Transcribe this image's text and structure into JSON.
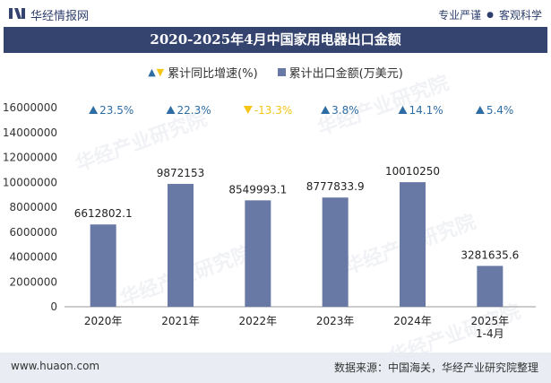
{
  "header": {
    "brand": "华经情报网",
    "tag1": "专业严谨",
    "tag2": "客观科学"
  },
  "title": "2020-2025年4月中国家用电器出口金额",
  "legend": {
    "growth": "累计同比增速(%)",
    "amount": "累计出口金额(万美元)"
  },
  "colors": {
    "bar": "#6979a5",
    "up": "#2e6da4",
    "down": "#f5c518",
    "title_bg": "#35446f"
  },
  "chart_data": {
    "type": "bar",
    "categories": [
      "2020年",
      "2021年",
      "2022年",
      "2023年",
      "2024年",
      "2025年\n1-4月"
    ],
    "series": [
      {
        "name": "累计出口金额(万美元)",
        "values": [
          6612802.1,
          9872153,
          8549993.1,
          8777833.9,
          10010250,
          3281635.6
        ]
      },
      {
        "name": "累计同比增速(%)",
        "values": [
          23.5,
          22.3,
          -13.3,
          3.8,
          14.1,
          5.4
        ]
      }
    ],
    "value_labels": [
      "6612802.1",
      "9872153",
      "8549993.1",
      "8777833.9",
      "10010250",
      "3281635.6"
    ],
    "growth_labels": [
      "23.5%",
      "22.3%",
      "-13.3%",
      "3.8%",
      "14.1%",
      "5.4%"
    ],
    "yticks": [
      "0",
      "2000000",
      "4000000",
      "6000000",
      "8000000",
      "10000000",
      "12000000",
      "14000000",
      "16000000"
    ],
    "ylim": [
      0,
      16000000
    ]
  },
  "footer": {
    "site": "www.huaon.com",
    "source": "数据来源：中国海关，华经产业研究院整理"
  },
  "watermark": "华经产业研究院"
}
